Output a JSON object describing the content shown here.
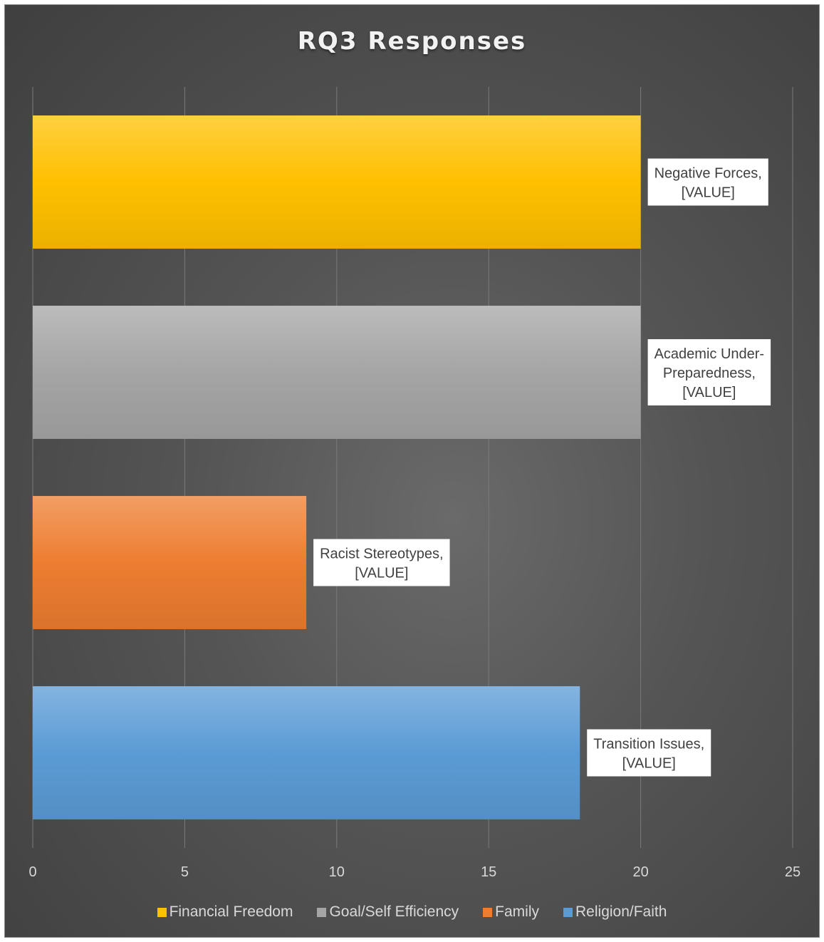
{
  "chart_data": {
    "type": "bar",
    "orientation": "horizontal",
    "title": "RQ3 Responses",
    "xlim": [
      0,
      25
    ],
    "x_ticks": [
      "0",
      "5",
      "10",
      "15",
      "20",
      "25"
    ],
    "grid": true,
    "series": [
      {
        "name": "Financial Freedom",
        "value": 20,
        "data_label": [
          "Negative Forces,",
          "[VALUE]"
        ],
        "color": "#ffc000"
      },
      {
        "name": "Goal/Self Efficiency",
        "value": 20,
        "data_label": [
          "Academic Under-",
          "Preparedness,",
          "[VALUE]"
        ],
        "color": "#a5a5a5"
      },
      {
        "name": "Family",
        "value": 9,
        "data_label": [
          "Racist Stereotypes,",
          "[VALUE]"
        ],
        "color": "#ed7d31"
      },
      {
        "name": "Religion/Faith",
        "value": 18,
        "data_label": [
          "Transition Issues,",
          "[VALUE]"
        ],
        "color": "#5b9bd5"
      }
    ],
    "legend_position": "bottom"
  }
}
